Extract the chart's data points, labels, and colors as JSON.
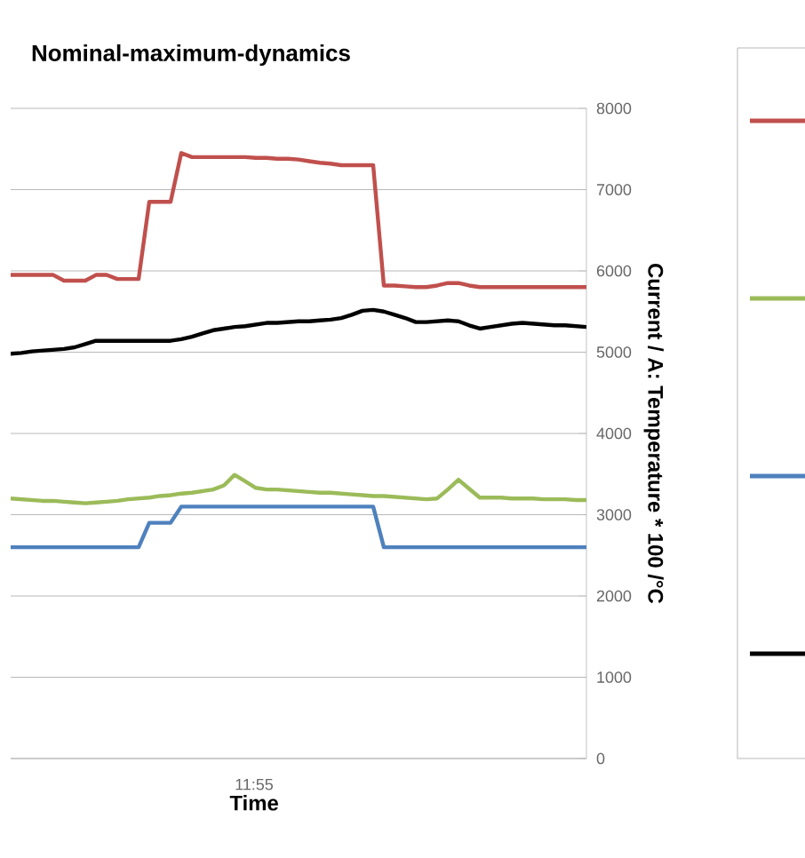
{
  "chart_data": {
    "type": "line",
    "title": "Nominal-maximum-dynamics",
    "xlabel": "Time",
    "ylabel": "Current / A: Temperature * 100 /°C",
    "annotations": [
      "11:55"
    ],
    "categories": [
      null,
      null,
      null,
      null,
      null,
      null,
      null,
      null,
      null,
      null,
      null,
      null,
      null,
      null,
      null,
      null,
      null,
      null,
      null,
      null,
      null,
      null,
      null,
      null,
      null,
      null,
      null,
      null,
      null,
      null,
      null,
      null,
      null,
      null,
      null,
      null,
      null,
      null,
      null,
      null,
      null,
      null,
      null,
      null,
      null,
      null,
      null,
      null,
      null,
      null,
      null,
      null,
      null,
      null,
      null
    ],
    "ylim": [
      0,
      8000
    ],
    "yticks": [
      0,
      1000,
      2000,
      3000,
      4000,
      5000,
      6000,
      7000,
      8000
    ],
    "grid": "y",
    "marker": "none",
    "line_style": "solid",
    "series": [
      {
        "color": "#c0504d",
        "values": [
          5950,
          5950,
          5950,
          5950,
          5950,
          5880,
          5880,
          5880,
          5950,
          5950,
          5900,
          5900,
          5900,
          6850,
          6850,
          6850,
          7450,
          7400,
          7400,
          7400,
          7400,
          7400,
          7400,
          7390,
          7390,
          7380,
          7380,
          7370,
          7350,
          7330,
          7320,
          7300,
          7300,
          7300,
          7300,
          5820,
          5820,
          5810,
          5800,
          5800,
          5820,
          5850,
          5850,
          5820,
          5800,
          5800,
          5800,
          5800,
          5800,
          5800,
          5800,
          5800,
          5800,
          5800,
          5800
        ]
      },
      {
        "color": "#9bbb59",
        "values": [
          3200,
          3190,
          3180,
          3170,
          3170,
          3160,
          3150,
          3140,
          3150,
          3160,
          3170,
          3190,
          3200,
          3210,
          3230,
          3240,
          3260,
          3270,
          3290,
          3310,
          3360,
          3490,
          3410,
          3330,
          3310,
          3310,
          3300,
          3290,
          3280,
          3270,
          3270,
          3260,
          3250,
          3240,
          3230,
          3230,
          3220,
          3210,
          3200,
          3190,
          3200,
          3310,
          3430,
          3320,
          3210,
          3210,
          3210,
          3200,
          3200,
          3200,
          3190,
          3190,
          3190,
          3180,
          3180
        ]
      },
      {
        "color": "#4f81bd",
        "values": [
          2600,
          2600,
          2600,
          2600,
          2600,
          2600,
          2600,
          2600,
          2600,
          2600,
          2600,
          2600,
          2600,
          2900,
          2900,
          2900,
          3100,
          3100,
          3100,
          3100,
          3100,
          3100,
          3100,
          3100,
          3100,
          3100,
          3100,
          3100,
          3100,
          3100,
          3100,
          3100,
          3100,
          3100,
          3100,
          2600,
          2600,
          2600,
          2600,
          2600,
          2600,
          2600,
          2600,
          2600,
          2600,
          2600,
          2600,
          2600,
          2600,
          2600,
          2600,
          2600,
          2600,
          2600,
          2600
        ]
      },
      {
        "color": "#000000",
        "values": [
          4980,
          4990,
          5010,
          5020,
          5030,
          5040,
          5060,
          5100,
          5140,
          5140,
          5140,
          5140,
          5140,
          5140,
          5140,
          5140,
          5160,
          5190,
          5230,
          5270,
          5290,
          5310,
          5320,
          5340,
          5360,
          5360,
          5370,
          5380,
          5380,
          5390,
          5400,
          5420,
          5460,
          5510,
          5520,
          5500,
          5460,
          5420,
          5370,
          5370,
          5380,
          5390,
          5380,
          5330,
          5290,
          5310,
          5330,
          5350,
          5360,
          5350,
          5340,
          5330,
          5330,
          5320,
          5310
        ]
      }
    ]
  }
}
